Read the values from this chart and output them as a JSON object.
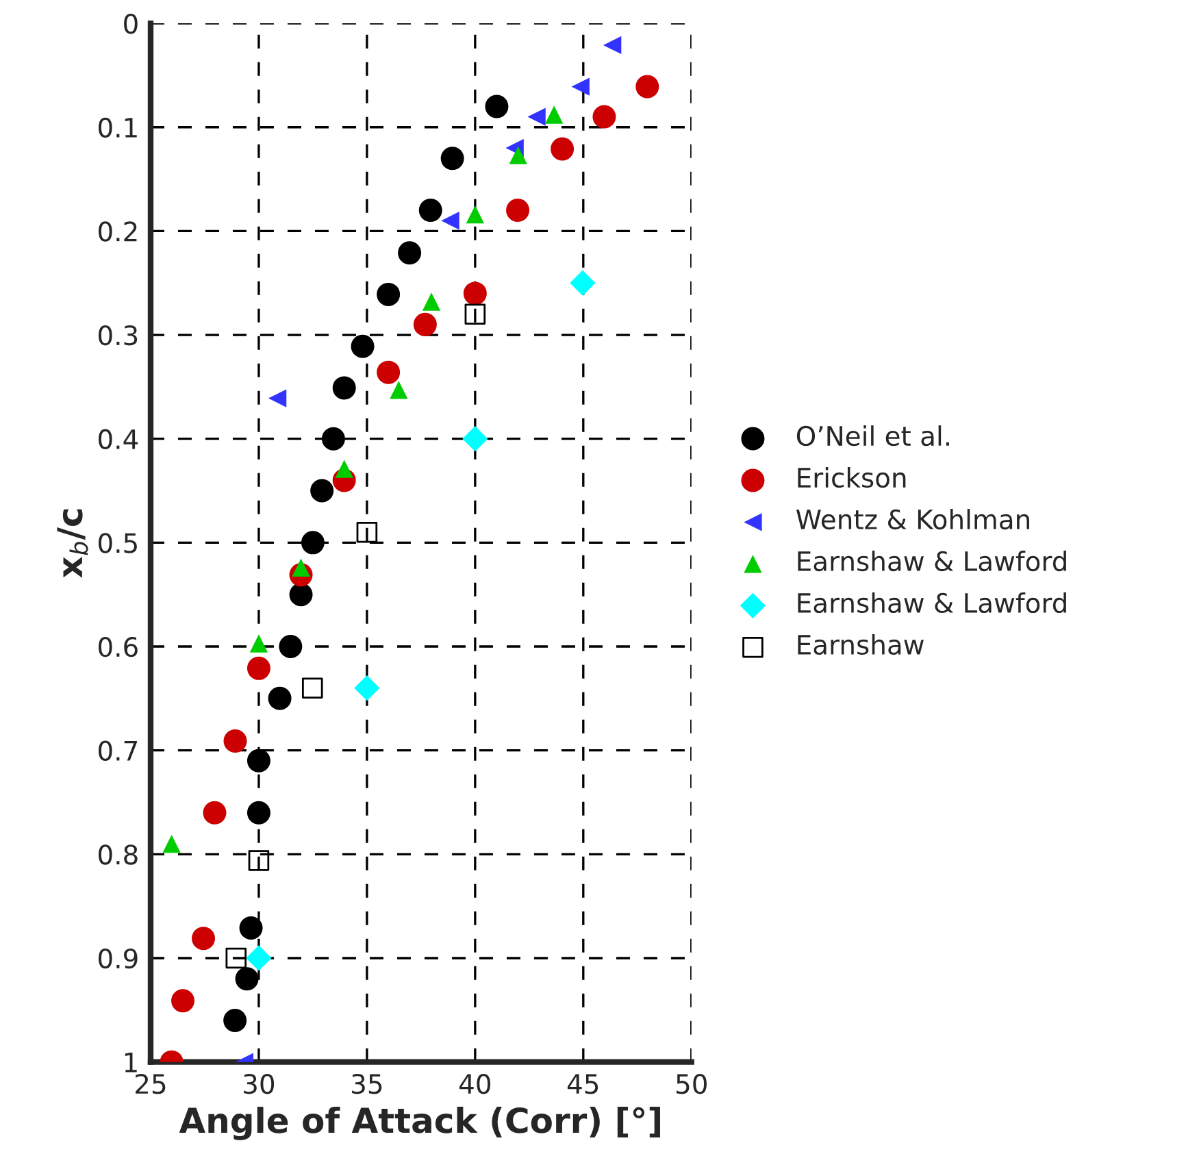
{
  "chart_data": {
    "type": "scatter",
    "xlabel": "Angle of Attack (Corr) [°]",
    "ylabel": "x$_{b}$/c",
    "xlim": [
      25,
      50
    ],
    "xticks": [
      25,
      30,
      35,
      40,
      45,
      50
    ],
    "ylim": [
      1,
      0
    ],
    "yticks": [
      0,
      0.1,
      0.2,
      0.3,
      0.4,
      0.5,
      0.6,
      0.7,
      0.8,
      0.9,
      1
    ],
    "grid": true,
    "line_style": "dashed",
    "legend": "right",
    "series": [
      {
        "name": "O’Neil et al.",
        "color": "#000000",
        "marker": "circle",
        "x": [
          41.0,
          38.95,
          37.94,
          36.97,
          35.99,
          34.8,
          33.95,
          33.45,
          32.92,
          32.5,
          31.95,
          31.47,
          30.97,
          30.0,
          30.0,
          29.64,
          29.45,
          28.9
        ],
        "values": [
          0.08,
          0.13,
          0.18,
          0.221,
          0.261,
          0.311,
          0.351,
          0.4,
          0.45,
          0.5,
          0.55,
          0.6,
          0.65,
          0.71,
          0.76,
          0.871,
          0.92,
          0.96
        ]
      },
      {
        "name": "Erickson",
        "color": "#cc0000",
        "marker": "circle",
        "x": [
          47.96,
          45.97,
          44.03,
          41.97,
          40.0,
          37.69,
          35.99,
          33.95,
          31.95,
          30.0,
          28.91,
          27.96,
          27.44,
          26.49,
          25.97
        ],
        "values": [
          0.061,
          0.09,
          0.121,
          0.18,
          0.26,
          0.29,
          0.336,
          0.44,
          0.531,
          0.621,
          0.691,
          0.76,
          0.881,
          0.941,
          1.0
        ]
      },
      {
        "name": "Wentz & Kohlman",
        "color": "#3333ff",
        "marker": "triangle-left",
        "x": [
          46.34,
          44.87,
          42.84,
          41.83,
          38.85,
          30.86,
          29.33
        ],
        "values": [
          0.021,
          0.061,
          0.09,
          0.12,
          0.19,
          0.361,
          1.0
        ]
      },
      {
        "name": "Earnshaw & Lawford",
        "color": "#00cc00",
        "marker": "triangle",
        "x": [
          43.65,
          41.99,
          40.0,
          37.98,
          36.47,
          33.95,
          31.95,
          30.0,
          25.97
        ],
        "values": [
          0.088,
          0.127,
          0.184,
          0.268,
          0.353,
          0.429,
          0.524,
          0.597,
          0.79
        ]
      },
      {
        "name": "Earnshaw & Lawford",
        "color": "#00ffff",
        "marker": "diamond",
        "x": [
          44.97,
          40.0,
          35.0,
          30.0
        ],
        "values": [
          0.25,
          0.4,
          0.64,
          0.9
        ]
      },
      {
        "name": "Earnshaw",
        "color": "#000000",
        "marker": "square",
        "x": [
          40.0,
          35.0,
          32.48,
          30.0,
          28.95
        ],
        "values": [
          0.28,
          0.49,
          0.64,
          0.806,
          0.9
        ]
      }
    ]
  }
}
